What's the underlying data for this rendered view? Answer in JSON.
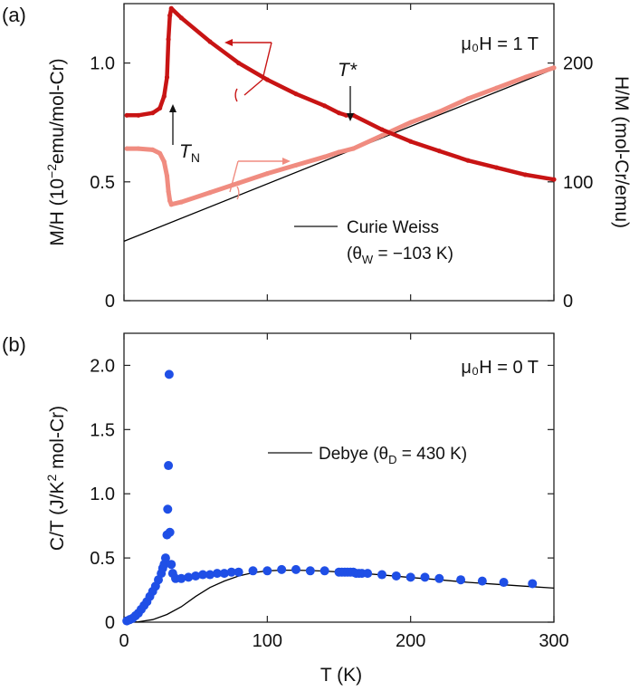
{
  "panels": {
    "a": {
      "label": "(a)",
      "field_label": "μ₀H = 1 T",
      "ylabel_left_prefix": "M/H (10",
      "ylabel_left_exp": "−2",
      "ylabel_left_suffix": "emu/mol-Cr)",
      "ylabel_right": "H/M (mol-Cr/emu)",
      "tn_label": "T",
      "tn_sub": "N",
      "tstar_label": "T*",
      "legend_line1": "Curie Weiss",
      "legend_line2_prefix": "(θ",
      "legend_line2_sub": "W",
      "legend_line2_suffix": " = −103 K)"
    },
    "b": {
      "label": "(b)",
      "field_label": "μ₀H = 0 T",
      "ylabel_prefix": "C/T (J/K",
      "ylabel_exp": "2",
      "ylabel_suffix": " mol-Cr)",
      "legend_prefix": "Debye (θ",
      "legend_sub": "D",
      "legend_suffix": " = 430 K)"
    },
    "xlabel": "T (K)"
  },
  "colors": {
    "mh": "#c81414",
    "hm": "#f08c80",
    "cp": "#1f4fe6",
    "fit": "#000000"
  },
  "chart_data": [
    {
      "type": "line",
      "panel": "(a)",
      "xlim": [
        0,
        300
      ],
      "ylim_left": [
        0,
        1.25
      ],
      "ylim_right": [
        0,
        250
      ],
      "xticks": [
        0,
        100,
        200,
        300
      ],
      "yticks_left": [
        "0",
        "0.5",
        "1.0"
      ],
      "yticks_right": [
        "0",
        "100",
        "200"
      ],
      "series": [
        {
          "axis": "left",
          "x": [
            2,
            10,
            20,
            25,
            28,
            30,
            31,
            32,
            33,
            40,
            60,
            80,
            100,
            120,
            140,
            150,
            155,
            160,
            180,
            200,
            220,
            240,
            260,
            280,
            300
          ],
          "y": [
            0.78,
            0.78,
            0.79,
            0.81,
            0.86,
            0.94,
            1.1,
            1.2,
            1.23,
            1.19,
            1.09,
            1.0,
            0.93,
            0.87,
            0.82,
            0.79,
            0.78,
            0.78,
            0.72,
            0.67,
            0.63,
            0.59,
            0.56,
            0.53,
            0.51
          ]
        },
        {
          "axis": "right",
          "x": [
            2,
            10,
            20,
            25,
            28,
            30,
            31,
            32,
            33,
            40,
            60,
            80,
            100,
            120,
            140,
            150,
            160,
            180,
            200,
            220,
            240,
            260,
            280,
            300
          ],
          "y": [
            128,
            128,
            127,
            124,
            117,
            105,
            92,
            84,
            81,
            83,
            91,
            99,
            107,
            114,
            121,
            125,
            128,
            139,
            150,
            159,
            170,
            179,
            188,
            196
          ]
        },
        {
          "name": "Curie Weiss",
          "axis": "right",
          "x": [
            0,
            300
          ],
          "y": [
            50,
            195
          ]
        }
      ]
    },
    {
      "type": "scatter",
      "panel": "(b)",
      "xlim": [
        0,
        300
      ],
      "ylim": [
        0,
        2.25
      ],
      "xticks": [
        0,
        100,
        200,
        300
      ],
      "yticks": [
        "0",
        "0.5",
        "1.0",
        "1.5",
        "2.0"
      ],
      "series": [
        {
          "x": [
            2,
            4,
            6,
            8,
            10,
            12,
            14,
            16,
            18,
            20,
            22,
            24,
            26,
            27,
            28,
            29,
            30,
            30.5,
            31,
            31.5,
            32,
            33,
            34,
            36,
            40,
            45,
            50,
            55,
            60,
            65,
            70,
            75,
            80,
            90,
            100,
            110,
            120,
            130,
            140,
            150,
            152,
            154,
            156,
            158,
            160,
            162,
            164,
            166,
            170,
            180,
            190,
            200,
            210,
            220,
            235,
            250,
            265,
            285
          ],
          "y": [
            0.01,
            0.02,
            0.03,
            0.05,
            0.07,
            0.1,
            0.13,
            0.16,
            0.2,
            0.24,
            0.28,
            0.33,
            0.38,
            0.42,
            0.45,
            0.5,
            0.68,
            0.88,
            1.22,
            1.93,
            0.7,
            0.45,
            0.38,
            0.34,
            0.34,
            0.35,
            0.36,
            0.37,
            0.37,
            0.38,
            0.38,
            0.39,
            0.39,
            0.4,
            0.4,
            0.41,
            0.41,
            0.4,
            0.4,
            0.39,
            0.39,
            0.39,
            0.39,
            0.39,
            0.39,
            0.38,
            0.38,
            0.38,
            0.38,
            0.37,
            0.36,
            0.35,
            0.35,
            0.34,
            0.33,
            0.32,
            0.31,
            0.3
          ]
        },
        {
          "name": "Debye",
          "x": [
            0,
            10,
            20,
            30,
            40,
            50,
            60,
            70,
            80,
            90,
            100,
            110,
            120,
            130,
            140,
            160,
            180,
            200,
            220,
            240,
            260,
            280,
            300
          ],
          "y": [
            0,
            0.003,
            0.02,
            0.06,
            0.12,
            0.2,
            0.27,
            0.32,
            0.36,
            0.385,
            0.4,
            0.405,
            0.405,
            0.402,
            0.398,
            0.385,
            0.368,
            0.348,
            0.33,
            0.31,
            0.295,
            0.28,
            0.265
          ]
        }
      ]
    }
  ]
}
